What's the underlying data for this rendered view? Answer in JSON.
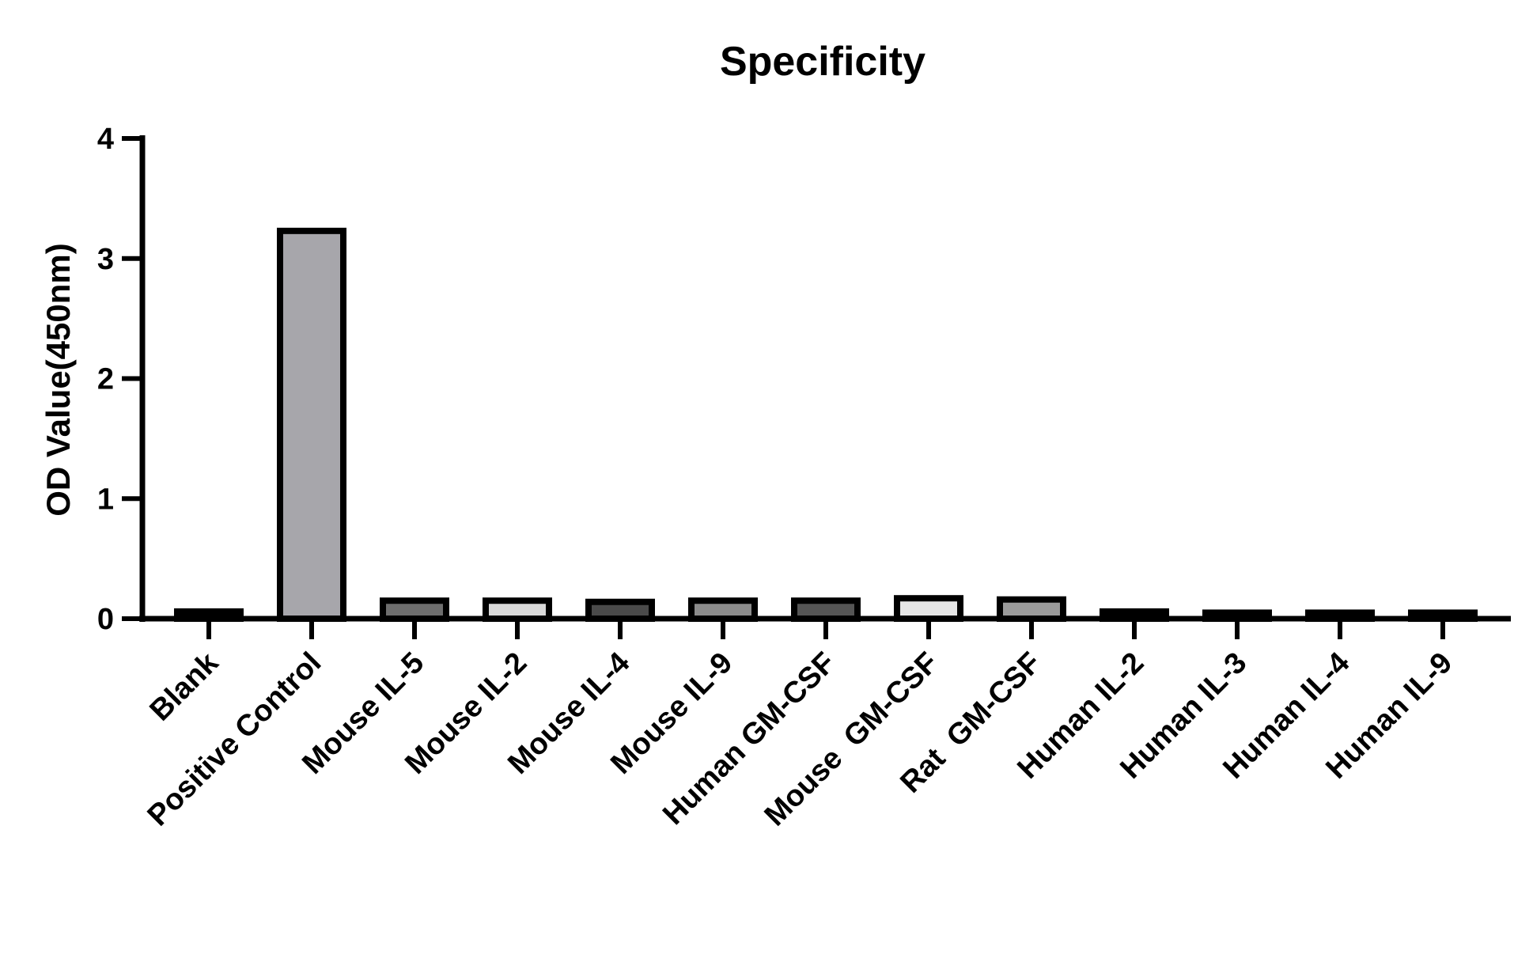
{
  "chart_data": {
    "type": "bar",
    "title": "Specificity",
    "xlabel": "",
    "ylabel": "OD Value(450nm)",
    "ylim": [
      0,
      4
    ],
    "yticks": [
      "0",
      "1",
      "2",
      "3",
      "4"
    ],
    "grid": false,
    "legend": "none",
    "categories": [
      "Blank",
      "Positive Control",
      "Mouse IL-5",
      "Mouse IL-2",
      "Mouse IL-4",
      "Mouse IL-9",
      "Human GM-CSF",
      "Mouse  GM-CSF",
      "Rat  GM-CSF",
      "Human IL-2",
      "Human IL-3",
      "Human IL-4",
      "Human IL-9"
    ],
    "values": [
      0.06,
      3.23,
      0.15,
      0.15,
      0.14,
      0.15,
      0.15,
      0.17,
      0.16,
      0.06,
      0.05,
      0.05,
      0.05
    ],
    "colors": [
      "#000000",
      "#a7a6ab",
      "#6e6e6e",
      "#d9d9d9",
      "#4a4a4a",
      "#8c8c8c",
      "#555555",
      "#e6e6e6",
      "#9a9a9a",
      "#000000",
      "#000000",
      "#000000",
      "#000000"
    ]
  }
}
